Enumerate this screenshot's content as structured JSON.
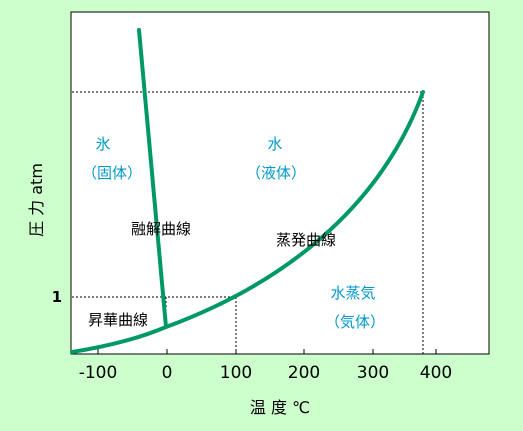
{
  "chart_data": {
    "type": "diagram",
    "ylabel": "圧 力 atm",
    "xlabel": "温 度 ℃",
    "x_ticks": [
      "-100",
      "0",
      "100",
      "200",
      "300",
      "400"
    ],
    "y_ticks": [
      "1"
    ],
    "xlim": [
      -140,
      470
    ],
    "regions": {
      "solid_name": "氷",
      "solid_phase": "（固体）",
      "liquid_name": "水",
      "liquid_phase": "（液体）",
      "gas_name": "水蒸気",
      "gas_phase": "（気体）"
    },
    "curve_labels": {
      "melting": "融解曲線",
      "vaporization": "蒸発曲線",
      "sublimation": "昇華曲線"
    },
    "colors": {
      "background": "#ccffcc",
      "plot_area": "#ffffff",
      "curve": "#009966",
      "phase_text": "#0099cc",
      "label_text": "#000000"
    }
  }
}
